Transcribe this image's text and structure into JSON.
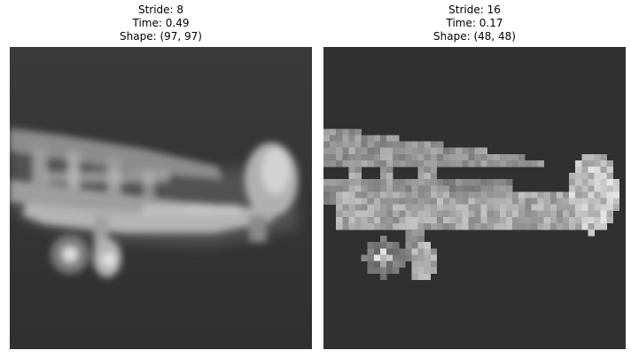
{
  "panels": [
    {
      "stride_label": "Stride: 8",
      "time_label": "Time: 0.49",
      "shape_label": "Shape: (97, 97)"
    },
    {
      "stride_label": "Stride: 16",
      "time_label": "Time: 0.17",
      "shape_label": "Shape: (48, 48)"
    }
  ],
  "colors": {
    "background_gray": "#2f2f2f",
    "subject_light": "#cfcfcf"
  }
}
